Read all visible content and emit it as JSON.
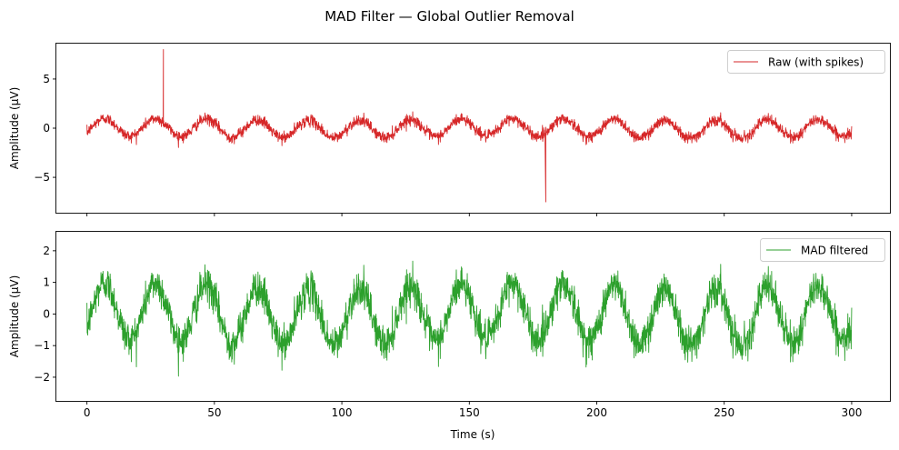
{
  "figure": {
    "title": "MAD Filter — Global Outlier Removal"
  },
  "chart_data": [
    {
      "type": "line",
      "ylabel": "Amplitude (µV)",
      "xlabel": "",
      "xlim": [
        -12,
        315
      ],
      "ylim": [
        -8.6,
        8.6
      ],
      "xticks": [
        0,
        50,
        100,
        150,
        200,
        250,
        300
      ],
      "xtick_labels_visible": false,
      "yticks": [
        -5,
        0,
        5
      ],
      "ytick_labels": [
        "−5",
        "0",
        "5"
      ],
      "legend": {
        "entries": [
          "Raw (with spikes)"
        ],
        "placement": "top-right"
      },
      "grid": false,
      "series": [
        {
          "name": "Raw (with spikes)",
          "color": "#d62728",
          "description_of_shape": "sinusoid ~0.05 Hz, amplitude ~0.9 µV, with dense noise",
          "x_range": [
            0,
            300
          ],
          "spikes": [
            {
              "x": 30,
              "y": 8.0
            },
            {
              "x": 180,
              "y": -7.5
            }
          ]
        }
      ]
    },
    {
      "type": "line",
      "ylabel": "Amplitude (µV)",
      "xlabel": "Time (s)",
      "xlim": [
        -12,
        315
      ],
      "ylim": [
        -2.75,
        2.6
      ],
      "xticks": [
        0,
        50,
        100,
        150,
        200,
        250,
        300
      ],
      "xtick_labels": [
        "0",
        "50",
        "100",
        "150",
        "200",
        "250",
        "300"
      ],
      "yticks": [
        -2,
        -1,
        0,
        1,
        2
      ],
      "ytick_labels": [
        "−2",
        "−1",
        "0",
        "1",
        "2"
      ],
      "legend": {
        "entries": [
          "MAD filtered"
        ],
        "placement": "top-right"
      },
      "grid": false,
      "series": [
        {
          "name": "MAD filtered",
          "color": "#2ca02c",
          "x_range": [
            0,
            300
          ]
        }
      ]
    }
  ]
}
